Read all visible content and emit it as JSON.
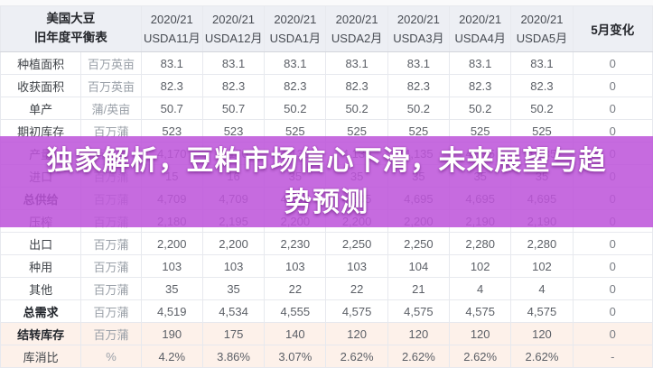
{
  "banner": {
    "text": "独家解析，豆粕市场信心下滑，未来展望与趋势预测",
    "bg_color": "rgba(189,85,218,0.87)",
    "text_color": "#ffffff"
  },
  "chart_data": {
    "type": "table",
    "title_line1": "美国大豆",
    "title_line2": "旧年度平衡表",
    "change_column_label": "5月变化",
    "columns": [
      {
        "year": "2020/21",
        "label": "USDA11月"
      },
      {
        "year": "2020/21",
        "label": "USDA12月"
      },
      {
        "year": "2020/21",
        "label": "USDA1月"
      },
      {
        "year": "2020/21",
        "label": "USDA2月"
      },
      {
        "year": "2020/21",
        "label": "USDA3月"
      },
      {
        "year": "2020/21",
        "label": "USDA4月"
      },
      {
        "year": "2020/21",
        "label": "USDA5月"
      }
    ],
    "rows": [
      {
        "label": "种植面积",
        "unit": "百万英亩",
        "values": [
          "83.1",
          "83.1",
          "83.1",
          "83.1",
          "83.1",
          "83.1",
          "83.1",
          "0"
        ],
        "bold": false,
        "highlight": false,
        "group_start": false
      },
      {
        "label": "收获面积",
        "unit": "百万英亩",
        "values": [
          "82.3",
          "82.3",
          "82.3",
          "82.3",
          "82.3",
          "82.3",
          "82.3",
          "0"
        ],
        "bold": false,
        "highlight": false,
        "group_start": false
      },
      {
        "label": "单产",
        "unit": "蒲/英亩",
        "values": [
          "50.7",
          "50.7",
          "50.2",
          "50.2",
          "50.2",
          "50.2",
          "50.2",
          "0"
        ],
        "bold": false,
        "highlight": false,
        "group_start": false
      },
      {
        "label": "期初库存",
        "unit": "百万蒲",
        "values": [
          "523",
          "523",
          "525",
          "525",
          "525",
          "525",
          "525",
          "0"
        ],
        "bold": false,
        "highlight": false,
        "group_start": true
      },
      {
        "label": "产量",
        "unit": "百万蒲",
        "values": [
          "4,170",
          "4,170",
          "4,135",
          "4,135",
          "4,135",
          "4,135",
          "4,135",
          "0"
        ],
        "bold": false,
        "highlight": false,
        "group_start": false
      },
      {
        "label": "进口",
        "unit": "百万蒲",
        "values": [
          "15",
          "16",
          "35",
          "35",
          "35",
          "35",
          "35",
          "0"
        ],
        "bold": false,
        "highlight": false,
        "group_start": false
      },
      {
        "label": "总供给",
        "unit": "百万蒲",
        "values": [
          "4,709",
          "4,709",
          "4,695",
          "4,695",
          "4,695",
          "4,695",
          "4,695",
          "0"
        ],
        "bold": true,
        "highlight": false,
        "group_start": false
      },
      {
        "label": "压榨",
        "unit": "百万蒲",
        "values": [
          "2,180",
          "2,195",
          "2,200",
          "2,200",
          "2,200",
          "2,190",
          "2,190",
          "0"
        ],
        "bold": false,
        "highlight": false,
        "group_start": true
      },
      {
        "label": "出口",
        "unit": "百万蒲",
        "values": [
          "2,200",
          "2,200",
          "2,230",
          "2,250",
          "2,250",
          "2,280",
          "2,280",
          "0"
        ],
        "bold": false,
        "highlight": false,
        "group_start": false
      },
      {
        "label": "种用",
        "unit": "百万蒲",
        "values": [
          "103",
          "103",
          "103",
          "103",
          "104",
          "102",
          "102",
          "0"
        ],
        "bold": false,
        "highlight": false,
        "group_start": false
      },
      {
        "label": "其他",
        "unit": "百万蒲",
        "values": [
          "35",
          "35",
          "22",
          "22",
          "21",
          "4",
          "4",
          "0"
        ],
        "bold": false,
        "highlight": false,
        "group_start": false
      },
      {
        "label": "总需求",
        "unit": "百万蒲",
        "values": [
          "4,519",
          "4,534",
          "4,555",
          "4,575",
          "4,575",
          "4,575",
          "4,575",
          "0"
        ],
        "bold": true,
        "highlight": false,
        "group_start": false
      },
      {
        "label": "结转库存",
        "unit": "百万蒲",
        "values": [
          "190",
          "175",
          "140",
          "120",
          "120",
          "120",
          "120",
          "0"
        ],
        "bold": true,
        "highlight": true,
        "group_start": true
      },
      {
        "label": "库消比",
        "unit": "%",
        "values": [
          "4.2%",
          "3.86%",
          "3.07%",
          "2.62%",
          "2.62%",
          "2.62%",
          "2.62%",
          "-"
        ],
        "bold": false,
        "highlight": true,
        "group_start": false
      }
    ]
  },
  "colors": {
    "header_bg": "#edeff4",
    "highlight_row_bg": "#fdf1ea",
    "banner_bg": "#bd55da",
    "border": "#e7e9ee"
  }
}
